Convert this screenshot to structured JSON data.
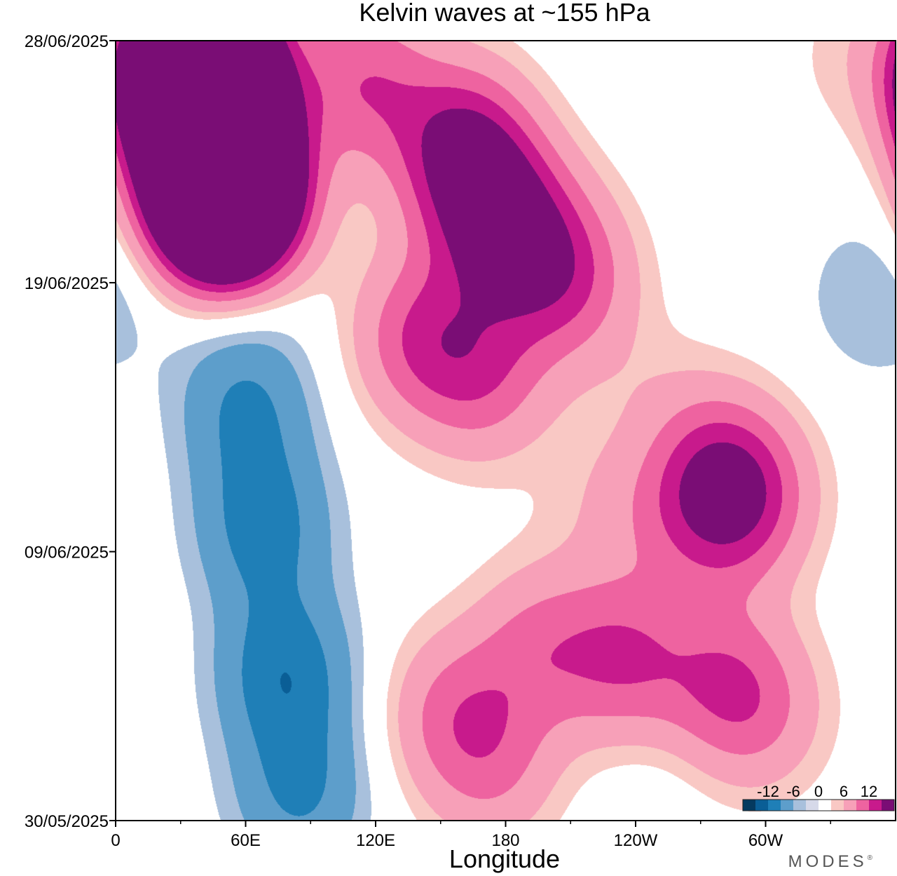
{
  "chart_data": {
    "type": "heatmap",
    "title": "Kelvin waves at ~155 hPa",
    "xlabel": "Longitude",
    "ylabel": "",
    "x_ticks": [
      {
        "lon": 0,
        "label": "0"
      },
      {
        "lon": 60,
        "label": "60E"
      },
      {
        "lon": 120,
        "label": "120E"
      },
      {
        "lon": 180,
        "label": "180"
      },
      {
        "lon": 240,
        "label": "120W"
      },
      {
        "lon": 300,
        "label": "60W"
      }
    ],
    "x_minor_ticks": [
      30,
      90,
      150,
      210,
      270,
      330
    ],
    "xlim": [
      0,
      360
    ],
    "y_ticks": [
      {
        "day": 0,
        "label": "30/05/2025"
      },
      {
        "day": 10,
        "label": "09/06/2025"
      },
      {
        "day": 20,
        "label": "19/06/2025"
      },
      {
        "day": 29,
        "label": "28/06/2025"
      }
    ],
    "ylim_days": [
      0,
      29
    ],
    "contour_levels": [
      -15,
      -12,
      -9,
      -6,
      -3,
      -1.5,
      1.5,
      3,
      6,
      9,
      12,
      15
    ],
    "colorbar": {
      "labels": [
        {
          "value": -12,
          "text": "-12"
        },
        {
          "value": -6,
          "text": "-6"
        },
        {
          "value": 0,
          "text": "0"
        },
        {
          "value": 6,
          "text": "6"
        },
        {
          "value": 12,
          "text": "12"
        }
      ],
      "colors": [
        "#053a5f",
        "#0a5e96",
        "#1f7fb7",
        "#5d9ecb",
        "#a8c0dc",
        "#d6d9e9",
        "#ffffff",
        "#f9c8c4",
        "#f7a0b8",
        "#ee63a0",
        "#c81a8c",
        "#7a0d75"
      ],
      "placement": "bottom-right"
    },
    "series": [
      {
        "name": "",
        "points": [
          [
            -3,
            52,
            27.5
          ],
          [
            62,
            40,
            27.5
          ],
          [
            52,
            50,
            23.4
          ],
          [
            -3,
            52,
            23.8
          ],
          [
            -2,
            55,
            19.9
          ],
          [
            -6,
            60,
            15.4
          ],
          [
            -7,
            68,
            10.9
          ],
          [
            -8,
            78,
            5.5
          ],
          [
            -6,
            85,
            1.0
          ],
          [
            8,
            115,
            27.5
          ],
          [
            12,
            160,
            25.0
          ],
          [
            9,
            175,
            22.5
          ],
          [
            8,
            140,
            18.0
          ],
          [
            7,
            170,
            16.5
          ],
          [
            6,
            190,
            21.5
          ],
          [
            7,
            210,
            20.0
          ],
          [
            4,
            250,
            15.0
          ],
          [
            3,
            230,
            12.0
          ],
          [
            4,
            265,
            11.5
          ],
          [
            6,
            275,
            13.0
          ],
          [
            9,
            290,
            12.0
          ],
          [
            6,
            195,
            6.5
          ],
          [
            8,
            235,
            6.0
          ],
          [
            7,
            280,
            5.0
          ],
          [
            4,
            300,
            4.0
          ],
          [
            5,
            175,
            2.0
          ],
          [
            6,
            155,
            4.0
          ],
          [
            -4,
            250,
            14.0
          ],
          [
            -3,
            350,
            19.5
          ],
          [
            2,
            340,
            28.5
          ],
          [
            -1,
            250,
            2.0
          ]
        ]
      }
    ]
  },
  "branding": {
    "text": "MODES",
    "mark": "®"
  }
}
